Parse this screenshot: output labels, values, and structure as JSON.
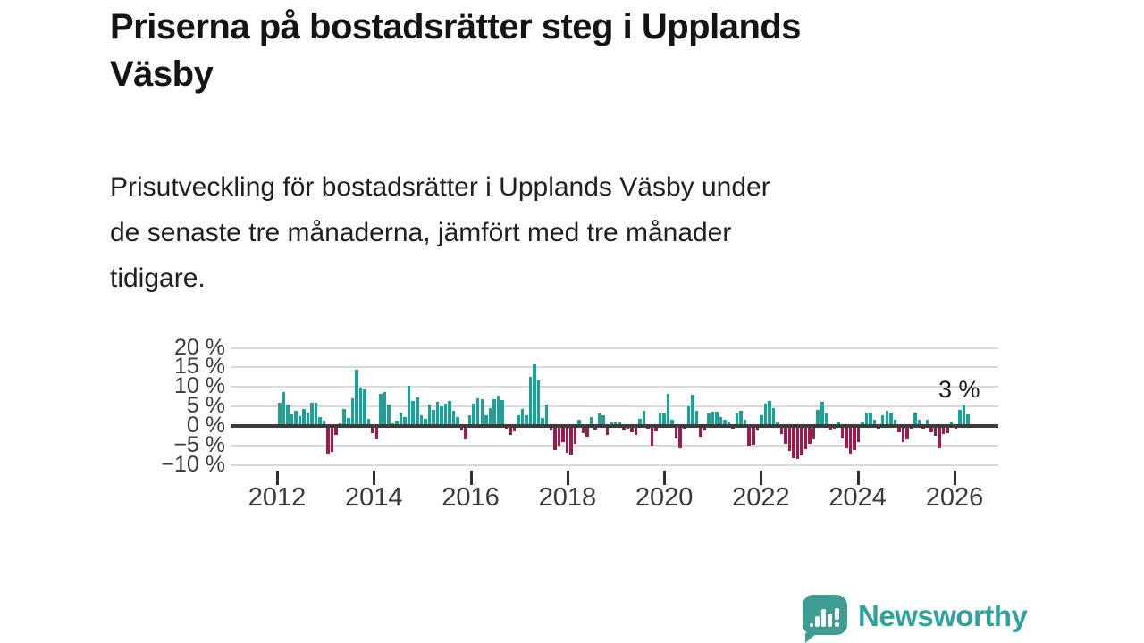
{
  "title": {
    "line1": "Priserna på bostadsrätter steg i Upplands",
    "line2": "Väsby"
  },
  "subtitle": {
    "line1": "Prisutveckling för bostadsrätter i Upplands Väsby under",
    "line2": "de senaste tre månaderna, jämfört med tre månader",
    "line3": "tidigare."
  },
  "footer": {
    "brand": "Newsworthy"
  },
  "colors": {
    "positive_bar": "#17A398",
    "negative_bar": "#A0194B",
    "zero_line": "#3C3C3C",
    "gridline": "#DADADA",
    "brand_teal": "#2EA39B"
  },
  "chart_data": {
    "type": "bar",
    "title": "",
    "xlabel": "",
    "ylabel": "",
    "unit": "%",
    "frequency": "monthly",
    "start": "2012-01",
    "end": "2026-03",
    "grid": true,
    "legend": "none",
    "ylim": [
      -10,
      20
    ],
    "y_ticks": [
      "20 %",
      "15 %",
      "10 %",
      "5 %",
      "0 %",
      "−5 %",
      "−10 %"
    ],
    "y_tick_values": [
      20,
      15,
      10,
      5,
      0,
      -5,
      -10
    ],
    "x_ticks": [
      "2012",
      "2014",
      "2016",
      "2018",
      "2020",
      "2022",
      "2024",
      "2026"
    ],
    "x_tick_years": [
      2012,
      2014,
      2016,
      2018,
      2020,
      2022,
      2024,
      2026
    ],
    "last_value_label": "3 %",
    "values": [
      5.9,
      8.6,
      5.5,
      3.0,
      3.9,
      2.6,
      4.4,
      3.4,
      6.0,
      6.0,
      2.2,
      1.4,
      -7.2,
      -6.7,
      -2.3,
      0.6,
      4.4,
      2.1,
      7.0,
      14.4,
      9.8,
      9.4,
      1.9,
      -1.8,
      -3.4,
      8.3,
      8.6,
      5.4,
      0.8,
      1.4,
      3.5,
      2.3,
      10.4,
      6.5,
      7.3,
      2.7,
      1.9,
      5.4,
      4.2,
      6.2,
      5.0,
      5.8,
      6.5,
      3.8,
      2.3,
      -1.2,
      -3.5,
      2.7,
      5.8,
      7.0,
      6.9,
      2.8,
      4.6,
      6.9,
      7.8,
      6.7,
      -0.8,
      -2.2,
      -1.4,
      2.7,
      4.3,
      2.8,
      12.6,
      15.8,
      11.7,
      2.1,
      5.4,
      -1.2,
      -6.2,
      -5.0,
      -4.2,
      -6.9,
      -7.3,
      -4.6,
      1.5,
      -1.9,
      -2.7,
      2.3,
      -0.9,
      3.2,
      2.7,
      -2.3,
      0.9,
      1.2,
      1.0,
      -1.2,
      -0.6,
      -1.7,
      -2.3,
      1.9,
      4.0,
      -0.6,
      -5.0,
      -1.4,
      3.1,
      3.1,
      8.3,
      1.7,
      -3.1,
      -5.8,
      -0.8,
      5.0,
      8.1,
      3.8,
      -2.7,
      -1.2,
      3.1,
      3.7,
      3.7,
      2.3,
      1.7,
      1.2,
      -0.6,
      3.1,
      4.0,
      1.5,
      -5.0,
      -4.8,
      -1.2,
      2.7,
      5.8,
      6.5,
      4.6,
      1.0,
      -2.0,
      -4.5,
      -6.5,
      -8.3,
      -8.5,
      -7.5,
      -6.0,
      -4.5,
      -3.5,
      4.2,
      6.2,
      3.1,
      -0.9,
      -0.8,
      1.2,
      -3.1,
      -5.8,
      -7.1,
      -6.2,
      -4.2,
      1.2,
      3.1,
      3.5,
      1.5,
      -0.8,
      2.7,
      4.0,
      3.2,
      1.7,
      -1.5,
      -4.2,
      -3.5,
      -0.8,
      3.5,
      1.7,
      -0.6,
      1.5,
      -1.5,
      -2.5,
      -5.8,
      -2.0,
      -1.8,
      1.2,
      -0.8,
      4.2,
      5.3,
      3.0
    ]
  }
}
